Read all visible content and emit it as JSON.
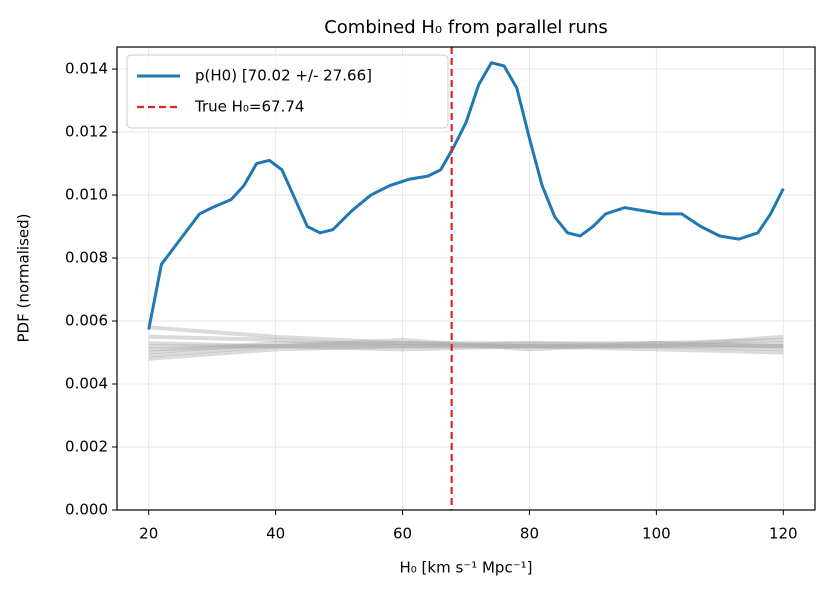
{
  "chart_data": {
    "type": "line",
    "title": "Combined H₀ from parallel runs",
    "xlabel": "H₀ [km s⁻¹ Mpc⁻¹]",
    "ylabel": "PDF (normalised)",
    "x": [
      20,
      22,
      25,
      28,
      30,
      33,
      35,
      37,
      39,
      41,
      43,
      45,
      47,
      49,
      52,
      55,
      58,
      61,
      64,
      66,
      68,
      70,
      72,
      74,
      76,
      78,
      80,
      82,
      84,
      86,
      88,
      90,
      92,
      95,
      98,
      101,
      104,
      107,
      110,
      113,
      116,
      118,
      120
    ],
    "series": [
      {
        "name": "p(H0) [70.02 +/- 27.66]",
        "color": "#1f77b4",
        "values": [
          0.00573,
          0.0078,
          0.0086,
          0.0094,
          0.0096,
          0.00986,
          0.0103,
          0.011,
          0.0111,
          0.0108,
          0.0099,
          0.009,
          0.0088,
          0.0089,
          0.0095,
          0.01,
          0.0103,
          0.0105,
          0.0106,
          0.0108,
          0.0115,
          0.0123,
          0.0135,
          0.0142,
          0.0141,
          0.0134,
          0.0118,
          0.0103,
          0.0093,
          0.0088,
          0.0087,
          0.009,
          0.0094,
          0.0096,
          0.0095,
          0.0094,
          0.0094,
          0.009,
          0.0087,
          0.0086,
          0.0088,
          0.0094,
          0.0102
        ]
      },
      {
        "name": "True H₀=67.74",
        "color": "#d62728",
        "x": 67.74,
        "dashed": true
      }
    ],
    "background_x": [
      20,
      40,
      60,
      80,
      100,
      120
    ],
    "background_color": "#b0b0b0",
    "background_runs": [
      [
        0.0052,
        0.0052,
        0.0052,
        0.0052,
        0.0052,
        0.0052
      ],
      [
        0.0058,
        0.0055,
        0.0053,
        0.0052,
        0.0051,
        0.005
      ],
      [
        0.0048,
        0.0051,
        0.0052,
        0.0053,
        0.0053,
        0.0054
      ],
      [
        0.005,
        0.0053,
        0.0053,
        0.0052,
        0.0052,
        0.0053
      ],
      [
        0.0051,
        0.0052,
        0.0051,
        0.0052,
        0.0053,
        0.0052
      ],
      [
        0.0053,
        0.0052,
        0.0053,
        0.0053,
        0.0052,
        0.0051
      ],
      [
        0.0055,
        0.0054,
        0.0052,
        0.0052,
        0.0052,
        0.0055
      ],
      [
        0.0049,
        0.0052,
        0.0054,
        0.0051,
        0.0053,
        0.0052
      ]
    ],
    "xlim": [
      15,
      125
    ],
    "ylim": [
      0,
      0.0147
    ],
    "xticks": [
      20,
      40,
      60,
      80,
      100,
      120
    ],
    "yticks": [
      {
        "value": 0,
        "label": "0.000"
      },
      {
        "value": 0.002,
        "label": "0.002"
      },
      {
        "value": 0.004,
        "label": "0.004"
      },
      {
        "value": 0.006,
        "label": "0.006"
      },
      {
        "value": 0.008,
        "label": "0.008"
      },
      {
        "value": 0.01,
        "label": "0.010"
      },
      {
        "value": 0.012,
        "label": "0.012"
      },
      {
        "value": 0.014,
        "label": "0.014"
      }
    ],
    "grid": true,
    "legend": "upper left"
  }
}
